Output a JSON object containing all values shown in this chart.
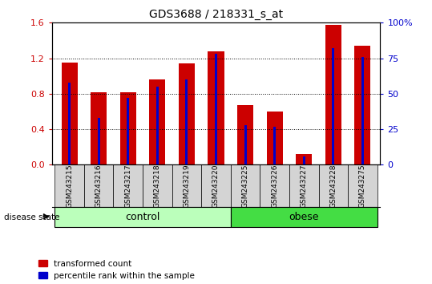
{
  "title": "GDS3688 / 218331_s_at",
  "samples": [
    "GSM243215",
    "GSM243216",
    "GSM243217",
    "GSM243218",
    "GSM243219",
    "GSM243220",
    "GSM243225",
    "GSM243226",
    "GSM243227",
    "GSM243228",
    "GSM243275"
  ],
  "transformed_count": [
    1.15,
    0.82,
    0.82,
    0.96,
    1.14,
    1.28,
    0.67,
    0.6,
    0.12,
    1.58,
    1.34
  ],
  "percentile_rank": [
    58,
    33,
    47,
    55,
    60,
    78,
    28,
    27,
    6,
    82,
    76
  ],
  "groups": [
    {
      "label": "control",
      "start": 0,
      "end": 5,
      "color": "#bbffbb"
    },
    {
      "label": "obese",
      "start": 6,
      "end": 10,
      "color": "#44dd44"
    }
  ],
  "ylim_left": [
    0,
    1.6
  ],
  "ylim_right": [
    0,
    100
  ],
  "yticks_left": [
    0,
    0.4,
    0.8,
    1.2,
    1.6
  ],
  "yticks_right": [
    0,
    25,
    50,
    75,
    100
  ],
  "bar_color_red": "#cc0000",
  "bar_color_blue": "#0000cc",
  "tick_label_color_left": "#cc0000",
  "tick_label_color_right": "#0000cc",
  "red_bar_width": 0.55,
  "blue_bar_width": 0.08,
  "figsize": [
    5.39,
    3.54
  ],
  "dpi": 100
}
